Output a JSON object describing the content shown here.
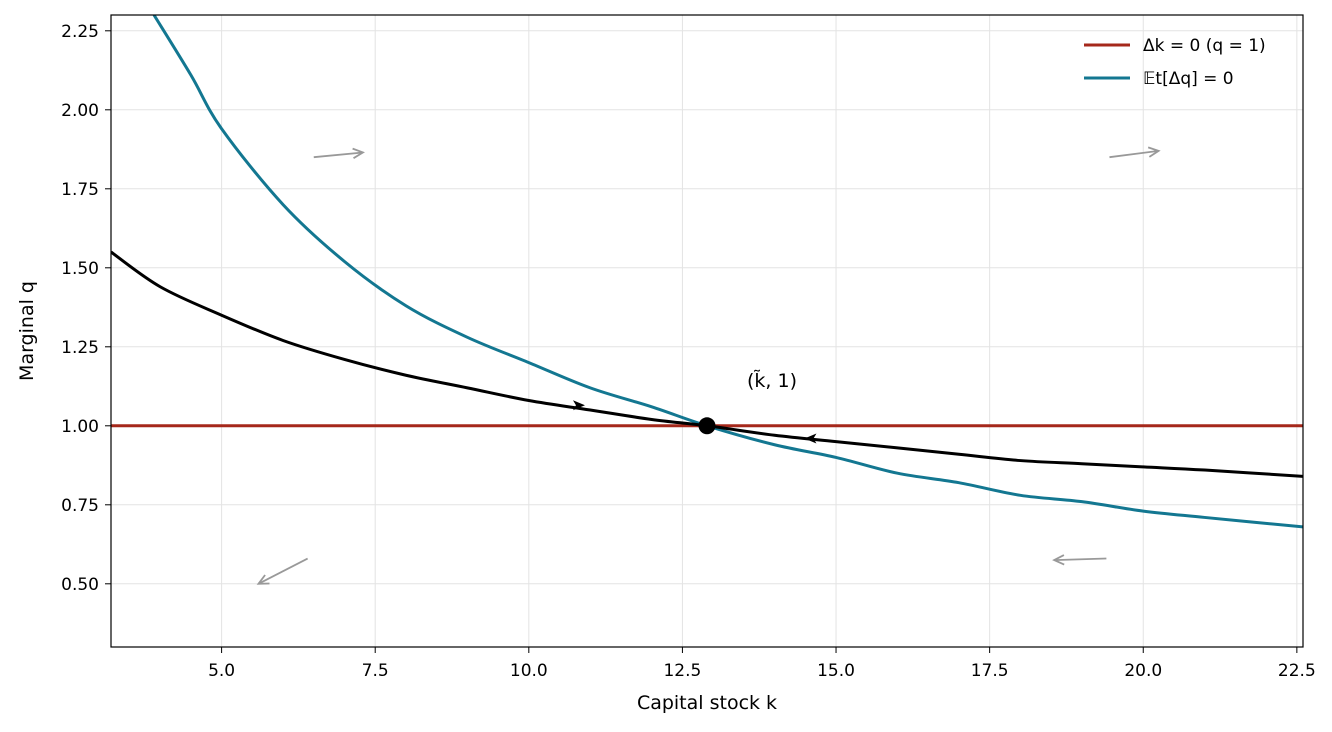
{
  "chart_data": {
    "type": "line",
    "xlabel": "Capital stock k",
    "ylabel": "Marginal q",
    "xlim": [
      3.2,
      22.6
    ],
    "ylim": [
      0.3,
      2.3
    ],
    "x_ticks": [
      "5.0",
      "7.5",
      "10.0",
      "12.5",
      "15.0",
      "17.5",
      "20.0",
      "22.5"
    ],
    "y_ticks": [
      "0.50",
      "0.75",
      "1.00",
      "1.25",
      "1.50",
      "1.75",
      "2.00",
      "2.25"
    ],
    "x_tick_values": [
      5.0,
      7.5,
      10.0,
      12.5,
      15.0,
      17.5,
      20.0,
      22.5
    ],
    "y_tick_values": [
      0.5,
      0.75,
      1.0,
      1.25,
      1.5,
      1.75,
      2.0,
      2.25
    ],
    "grid": true,
    "legend_position": "top-right",
    "series": [
      {
        "name": "Δk = 0 (q = 1)",
        "color": "#a5281b",
        "x": [
          3.2,
          22.6
        ],
        "y": [
          1.0,
          1.0
        ]
      },
      {
        "name": "𝔼t[Δq] = 0",
        "color": "#137791",
        "x": [
          3.9,
          4.5,
          5.0,
          6.0,
          7.0,
          8.0,
          9.0,
          10.0,
          11.0,
          12.0,
          12.9,
          14.0,
          15.0,
          16.0,
          17.0,
          18.0,
          19.0,
          20.0,
          21.0,
          22.6
        ],
        "y": [
          2.3,
          2.11,
          1.94,
          1.7,
          1.52,
          1.38,
          1.28,
          1.2,
          1.12,
          1.06,
          1.0,
          0.94,
          0.9,
          0.85,
          0.82,
          0.78,
          0.76,
          0.73,
          0.71,
          0.68
        ]
      },
      {
        "color": "#000000",
        "x": [
          3.2,
          4.0,
          5.0,
          6.0,
          7.0,
          8.0,
          9.0,
          10.0,
          11.0,
          12.0,
          12.9,
          14.0,
          15.0,
          16.0,
          17.0,
          18.0,
          19.0,
          20.0,
          21.0,
          22.6
        ],
        "y": [
          1.55,
          1.44,
          1.35,
          1.27,
          1.21,
          1.16,
          1.12,
          1.08,
          1.05,
          1.02,
          1.0,
          0.97,
          0.95,
          0.93,
          0.91,
          0.89,
          0.88,
          0.87,
          0.86,
          0.84
        ]
      }
    ],
    "steady_state": {
      "x": 12.9,
      "y": 1.0,
      "label": "(k̃, 1)"
    },
    "path_arrows": [
      {
        "x": 10.8,
        "y": 1.065,
        "direction": "right"
      },
      {
        "x": 14.6,
        "y": 0.96,
        "direction": "left"
      }
    ],
    "field_arrows": [
      {
        "x1": 6.5,
        "y1": 1.85,
        "x2": 7.3,
        "y2": 1.865
      },
      {
        "x1": 19.45,
        "y1": 1.85,
        "x2": 20.25,
        "y2": 1.87
      },
      {
        "x1": 6.4,
        "y1": 0.58,
        "x2": 5.6,
        "y2": 0.5
      },
      {
        "x1": 19.4,
        "y1": 0.58,
        "x2": 18.55,
        "y2": 0.575
      }
    ],
    "field_arrow_color": "#999999"
  }
}
